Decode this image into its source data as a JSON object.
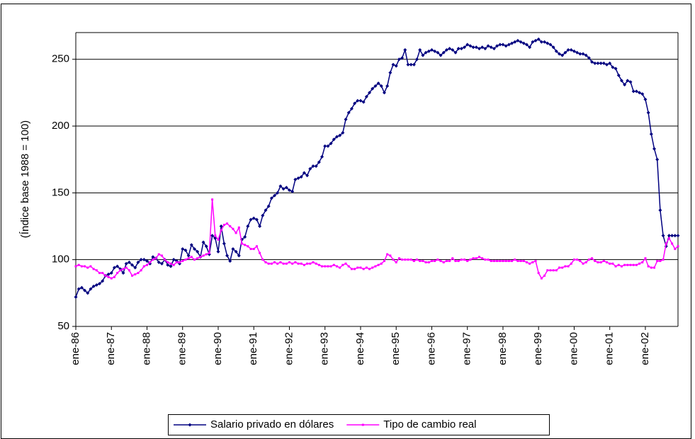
{
  "chart_data": {
    "type": "line",
    "y_label": "(Índice base 1988 = 100)",
    "ylim": [
      50,
      270
    ],
    "yticks": [
      50,
      100,
      150,
      200,
      250
    ],
    "grid": true,
    "legend": "bottom",
    "categories": [
      "ene-86",
      null,
      null,
      null,
      null,
      null,
      null,
      null,
      null,
      null,
      null,
      null,
      "ene-87",
      null,
      null,
      null,
      null,
      null,
      null,
      null,
      null,
      null,
      null,
      null,
      "ene-88",
      null,
      null,
      null,
      null,
      null,
      null,
      null,
      null,
      null,
      null,
      null,
      "ene-89",
      null,
      null,
      null,
      null,
      null,
      null,
      null,
      null,
      null,
      null,
      null,
      "ene-90",
      null,
      null,
      null,
      null,
      null,
      null,
      null,
      null,
      null,
      null,
      null,
      "ene-91",
      null,
      null,
      null,
      null,
      null,
      null,
      null,
      null,
      null,
      null,
      null,
      "ene-92",
      null,
      null,
      null,
      null,
      null,
      null,
      null,
      null,
      null,
      null,
      null,
      "ene-93",
      null,
      null,
      null,
      null,
      null,
      null,
      null,
      null,
      null,
      null,
      null,
      "ene-94",
      null,
      null,
      null,
      null,
      null,
      null,
      null,
      null,
      null,
      null,
      null,
      "ene-95",
      null,
      null,
      null,
      null,
      null,
      null,
      null,
      null,
      null,
      null,
      null,
      "ene-96",
      null,
      null,
      null,
      null,
      null,
      null,
      null,
      null,
      null,
      null,
      null,
      "ene-97",
      null,
      null,
      null,
      null,
      null,
      null,
      null,
      null,
      null,
      null,
      null,
      "ene-98",
      null,
      null,
      null,
      null,
      null,
      null,
      null,
      null,
      null,
      null,
      null,
      "ene-99",
      null,
      null,
      null,
      null,
      null,
      null,
      null,
      null,
      null,
      null,
      null,
      "ene-00",
      null,
      null,
      null,
      null,
      null,
      null,
      null,
      null,
      null,
      null,
      null,
      "ene-01",
      null,
      null,
      null,
      null,
      null,
      null,
      null,
      null,
      null,
      null,
      null,
      "ene-02",
      null,
      null,
      null,
      null,
      null,
      null,
      null,
      null,
      null,
      null,
      null
    ],
    "series": [
      {
        "name": "Salario privado en dólares",
        "color": "#000080",
        "marker": "diamond",
        "values": [
          72,
          78,
          79,
          77,
          75,
          78,
          80,
          81,
          82,
          84,
          88,
          89,
          90,
          94,
          95,
          93,
          90,
          97,
          98,
          96,
          94,
          98,
          100,
          100,
          99,
          97,
          102,
          101,
          98,
          97,
          100,
          96,
          95,
          100,
          99,
          97,
          108,
          107,
          103,
          111,
          108,
          106,
          102,
          113,
          110,
          104,
          118,
          116,
          106,
          125,
          112,
          103,
          99,
          108,
          106,
          103,
          115,
          117,
          125,
          130,
          131,
          130,
          125,
          133,
          137,
          140,
          146,
          148,
          150,
          155,
          153,
          154,
          152,
          151,
          160,
          161,
          162,
          165,
          163,
          168,
          170,
          170,
          173,
          177,
          185,
          185,
          187,
          190,
          192,
          193,
          195,
          205,
          210,
          213,
          217,
          219,
          219,
          218,
          222,
          225,
          228,
          230,
          232,
          230,
          225,
          230,
          240,
          246,
          245,
          250,
          251,
          257,
          246,
          246,
          246,
          250,
          257,
          253,
          255,
          256,
          257,
          256,
          255,
          253,
          255,
          257,
          258,
          257,
          255,
          258,
          258,
          259,
          261,
          260,
          259,
          259,
          258,
          259,
          258,
          260,
          259,
          258,
          260,
          261,
          261,
          260,
          261,
          262,
          263,
          264,
          263,
          262,
          261,
          259,
          263,
          264,
          265,
          263,
          263,
          262,
          261,
          259,
          256,
          254,
          253,
          255,
          257,
          257,
          256,
          255,
          254,
          254,
          253,
          251,
          248,
          247,
          247,
          247,
          247,
          246,
          247,
          244,
          243,
          238,
          234,
          231,
          234,
          233,
          226,
          226,
          225,
          224,
          220,
          210,
          194,
          183,
          175,
          137,
          118,
          110,
          118,
          118,
          118,
          118
        ]
      },
      {
        "name": "Tipo de cambio real",
        "color": "#ff00ff",
        "marker": "square",
        "values": [
          95,
          96,
          95,
          95,
          94,
          95,
          93,
          92,
          90,
          90,
          88,
          87,
          86,
          87,
          90,
          92,
          93,
          94,
          92,
          88,
          89,
          90,
          92,
          95,
          96,
          98,
          100,
          101,
          104,
          103,
          100,
          98,
          97,
          96,
          98,
          98,
          99,
          100,
          101,
          102,
          100,
          101,
          102,
          103,
          104,
          105,
          145,
          118,
          115,
          122,
          126,
          127,
          125,
          123,
          120,
          124,
          112,
          111,
          110,
          108,
          108,
          110,
          105,
          100,
          98,
          97,
          97,
          98,
          97,
          98,
          97,
          97,
          98,
          97,
          98,
          97,
          97,
          96,
          97,
          97,
          98,
          97,
          96,
          95,
          95,
          95,
          95,
          96,
          95,
          94,
          96,
          97,
          95,
          93,
          93,
          94,
          94,
          93,
          94,
          93,
          94,
          95,
          96,
          97,
          99,
          104,
          103,
          100,
          98,
          101,
          100,
          100,
          100,
          100,
          99,
          100,
          99,
          99,
          98,
          98,
          99,
          99,
          100,
          99,
          98,
          99,
          99,
          101,
          99,
          99,
          100,
          100,
          99,
          100,
          101,
          101,
          102,
          101,
          100,
          100,
          99,
          99,
          99,
          99,
          99,
          99,
          99,
          99,
          100,
          99,
          99,
          99,
          98,
          97,
          98,
          99,
          90,
          86,
          88,
          92,
          92,
          92,
          92,
          94,
          94,
          95,
          95,
          97,
          100,
          100,
          99,
          97,
          98,
          100,
          101,
          99,
          98,
          98,
          99,
          98,
          97,
          97,
          95,
          96,
          95,
          96,
          96,
          96,
          96,
          96,
          97,
          98,
          101,
          95,
          94,
          94,
          99,
          99,
          100,
          112,
          116,
          112,
          108,
          110
        ]
      }
    ]
  }
}
